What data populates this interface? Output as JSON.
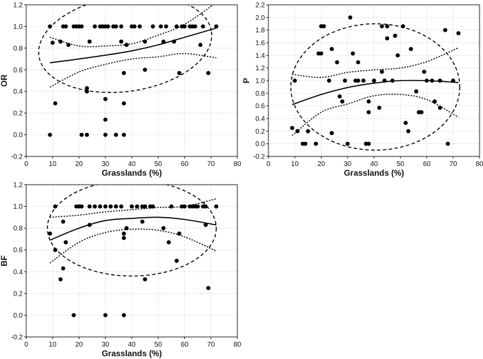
{
  "chart_data": [
    {
      "type": "scatter",
      "id": "OR",
      "xlabel": "Grasslands (%)",
      "ylabel": "OR",
      "xlim": [
        0,
        80
      ],
      "ylim": [
        -0.2,
        1.2
      ],
      "xticks": [
        0,
        10,
        20,
        30,
        40,
        50,
        60,
        70,
        80
      ],
      "yticks": [
        -0.2,
        0.0,
        0.2,
        0.4,
        0.6,
        0.8,
        1.0,
        1.2
      ],
      "grid": true,
      "points": [
        [
          9,
          1.0
        ],
        [
          10,
          0.85
        ],
        [
          11,
          0.29
        ],
        [
          13,
          0.86
        ],
        [
          14,
          1.0
        ],
        [
          15,
          1.0
        ],
        [
          16,
          0.83
        ],
        [
          18,
          1.0
        ],
        [
          19,
          1.0
        ],
        [
          20,
          1.0
        ],
        [
          21,
          1.0
        ],
        [
          23,
          0.43
        ],
        [
          23,
          0.4
        ],
        [
          24,
          0.86
        ],
        [
          26,
          1.0
        ],
        [
          28,
          1.0
        ],
        [
          29,
          1.0
        ],
        [
          30,
          1.0
        ],
        [
          31,
          1.0
        ],
        [
          33,
          1.0
        ],
        [
          34,
          1.0
        ],
        [
          36,
          1.0
        ],
        [
          36,
          0.86
        ],
        [
          37,
          0.57
        ],
        [
          38,
          0.83
        ],
        [
          40,
          1.0
        ],
        [
          41,
          1.0
        ],
        [
          43,
          1.0
        ],
        [
          45,
          0.6
        ],
        [
          45,
          0.86
        ],
        [
          48,
          1.0
        ],
        [
          51,
          1.0
        ],
        [
          52,
          0.86
        ],
        [
          53,
          1.0
        ],
        [
          56,
          0.86
        ],
        [
          57,
          1.0
        ],
        [
          58,
          0.57
        ],
        [
          59,
          1.0
        ],
        [
          60,
          1.0
        ],
        [
          62,
          1.0
        ],
        [
          63,
          1.0
        ],
        [
          64,
          1.0
        ],
        [
          66,
          0.83
        ],
        [
          67,
          1.0
        ],
        [
          69,
          0.57
        ],
        [
          72,
          1.0
        ],
        [
          9,
          0.0
        ],
        [
          21,
          0.0
        ],
        [
          23,
          0.0
        ],
        [
          30,
          0.33
        ],
        [
          30,
          0.14
        ],
        [
          30,
          0.0
        ],
        [
          34,
          0.0
        ],
        [
          37,
          0.0
        ],
        [
          37,
          0.29
        ]
      ],
      "fit": [
        [
          9,
          0.665
        ],
        [
          20,
          0.7
        ],
        [
          30,
          0.735
        ],
        [
          40,
          0.775
        ],
        [
          50,
          0.83
        ],
        [
          60,
          0.9
        ],
        [
          72,
          0.985
        ]
      ],
      "ci_upper": [
        [
          9,
          0.9
        ],
        [
          20,
          0.82
        ],
        [
          30,
          0.82
        ],
        [
          40,
          0.84
        ],
        [
          50,
          0.92
        ],
        [
          60,
          1.02
        ],
        [
          72,
          1.22
        ]
      ],
      "ci_lower": [
        [
          9,
          0.44
        ],
        [
          20,
          0.58
        ],
        [
          30,
          0.65
        ],
        [
          40,
          0.7
        ],
        [
          50,
          0.72
        ],
        [
          60,
          0.75
        ],
        [
          72,
          0.71
        ]
      ],
      "ellipse": {
        "cx": 37.5,
        "cy": 0.84,
        "rx": 33,
        "ry": 0.44,
        "angle": -8
      }
    },
    {
      "type": "scatter",
      "id": "P",
      "xlabel": "Grasslands (%)",
      "ylabel": "P",
      "xlim": [
        0,
        80
      ],
      "ylim": [
        -0.2,
        2.2
      ],
      "xticks": [
        0,
        10,
        20,
        30,
        40,
        50,
        60,
        70,
        80
      ],
      "yticks": [
        -0.2,
        0.0,
        0.2,
        0.4,
        0.6,
        0.8,
        1.0,
        1.2,
        1.4,
        1.6,
        1.8,
        2.0,
        2.2
      ],
      "grid": true,
      "points": [
        [
          9,
          0.25
        ],
        [
          10,
          1.0
        ],
        [
          11,
          0.2
        ],
        [
          13,
          0.0
        ],
        [
          14,
          0.0
        ],
        [
          15,
          0.2
        ],
        [
          18,
          0.0
        ],
        [
          19,
          1.43
        ],
        [
          20,
          1.86
        ],
        [
          21,
          1.86
        ],
        [
          20,
          1.43
        ],
        [
          23,
          1.0
        ],
        [
          24,
          1.5
        ],
        [
          24,
          0.17
        ],
        [
          26,
          1.29
        ],
        [
          27,
          0.75
        ],
        [
          28,
          0.67
        ],
        [
          29,
          1.0
        ],
        [
          30,
          0.0
        ],
        [
          31,
          2.0
        ],
        [
          32,
          1.43
        ],
        [
          33,
          1.0
        ],
        [
          34,
          1.29
        ],
        [
          34,
          1.0
        ],
        [
          36,
          1.0
        ],
        [
          37,
          0.0
        ],
        [
          38,
          0.67
        ],
        [
          38,
          0.5
        ],
        [
          40,
          1.0
        ],
        [
          42,
          0.57
        ],
        [
          43,
          1.86
        ],
        [
          43,
          1.14
        ],
        [
          44,
          1.0
        ],
        [
          45,
          1.86
        ],
        [
          45,
          1.67
        ],
        [
          47,
          1.0
        ],
        [
          48,
          1.71
        ],
        [
          49,
          1.4
        ],
        [
          51,
          1.86
        ],
        [
          52,
          0.33
        ],
        [
          53,
          0.2
        ],
        [
          54,
          1.5
        ],
        [
          56,
          0.83
        ],
        [
          57,
          0.5
        ],
        [
          58,
          0.5
        ],
        [
          59,
          1.14
        ],
        [
          60,
          1.0
        ],
        [
          62,
          1.0
        ],
        [
          63,
          0.67
        ],
        [
          65,
          1.0
        ],
        [
          65,
          0.57
        ],
        [
          67,
          1.8
        ],
        [
          68,
          0.0
        ],
        [
          70,
          1.0
        ],
        [
          72,
          1.75
        ],
        [
          37,
          0.0
        ],
        [
          38,
          0.0
        ]
      ],
      "fit": [
        [
          9,
          0.62
        ],
        [
          20,
          0.78
        ],
        [
          30,
          0.89
        ],
        [
          40,
          0.96
        ],
        [
          50,
          1.0
        ],
        [
          60,
          1.0
        ],
        [
          72,
          0.97
        ]
      ],
      "ci_upper": [
        [
          9,
          1.1
        ],
        [
          20,
          1.05
        ],
        [
          30,
          1.13
        ],
        [
          40,
          1.17
        ],
        [
          50,
          1.2
        ],
        [
          60,
          1.3
        ],
        [
          72,
          1.52
        ]
      ],
      "ci_lower": [
        [
          9,
          0.13
        ],
        [
          20,
          0.5
        ],
        [
          30,
          0.63
        ],
        [
          40,
          0.76
        ],
        [
          50,
          0.78
        ],
        [
          60,
          0.7
        ],
        [
          72,
          0.42
        ]
      ],
      "ellipse": {
        "cx": 40.5,
        "cy": 0.9,
        "rx": 32,
        "ry": 1.0,
        "angle": 0
      }
    },
    {
      "type": "scatter",
      "id": "BF",
      "xlabel": "Grasslands (%)",
      "ylabel": "BF",
      "xlim": [
        0,
        80
      ],
      "ylim": [
        -0.2,
        1.2
      ],
      "xticks": [
        0,
        10,
        20,
        30,
        40,
        50,
        60,
        70,
        80
      ],
      "yticks": [
        -0.2,
        0.0,
        0.2,
        0.4,
        0.6,
        0.8,
        1.0,
        1.2
      ],
      "grid": true,
      "points": [
        [
          9,
          0.75
        ],
        [
          11,
          1.0
        ],
        [
          11,
          0.6
        ],
        [
          13,
          0.33
        ],
        [
          14,
          0.86
        ],
        [
          14,
          0.43
        ],
        [
          15,
          0.67
        ],
        [
          18,
          0.0
        ],
        [
          19,
          1.0
        ],
        [
          20,
          1.0
        ],
        [
          21,
          1.0
        ],
        [
          24,
          1.0
        ],
        [
          24,
          0.83
        ],
        [
          26,
          1.0
        ],
        [
          28,
          1.0
        ],
        [
          30,
          1.0
        ],
        [
          30,
          0.0
        ],
        [
          32,
          1.0
        ],
        [
          34,
          1.0
        ],
        [
          36,
          1.0
        ],
        [
          37,
          0.75
        ],
        [
          37,
          0.71
        ],
        [
          38,
          0.8
        ],
        [
          37,
          0.0
        ],
        [
          40,
          1.0
        ],
        [
          42,
          1.0
        ],
        [
          44,
          1.0
        ],
        [
          44,
          0.86
        ],
        [
          45,
          1.0
        ],
        [
          45,
          0.33
        ],
        [
          47,
          1.0
        ],
        [
          48,
          1.0
        ],
        [
          52,
          0.8
        ],
        [
          54,
          0.67
        ],
        [
          55,
          1.0
        ],
        [
          57,
          0.5
        ],
        [
          58,
          0.75
        ],
        [
          59,
          1.0
        ],
        [
          60,
          1.0
        ],
        [
          62,
          1.0
        ],
        [
          63,
          1.0
        ],
        [
          64,
          1.0
        ],
        [
          65,
          1.0
        ],
        [
          67,
          1.0
        ],
        [
          68,
          0.83
        ],
        [
          68,
          1.0
        ],
        [
          69,
          0.25
        ],
        [
          72,
          1.0
        ]
      ],
      "fit": [
        [
          9,
          0.69
        ],
        [
          20,
          0.8
        ],
        [
          30,
          0.87
        ],
        [
          40,
          0.89
        ],
        [
          50,
          0.9
        ],
        [
          60,
          0.88
        ],
        [
          72,
          0.83
        ]
      ],
      "ci_upper": [
        [
          9,
          0.9
        ],
        [
          20,
          0.92
        ],
        [
          30,
          0.95
        ],
        [
          40,
          0.97
        ],
        [
          50,
          0.99
        ],
        [
          60,
          1.0
        ],
        [
          72,
          1.07
        ]
      ],
      "ci_lower": [
        [
          9,
          0.48
        ],
        [
          20,
          0.67
        ],
        [
          30,
          0.76
        ],
        [
          40,
          0.79
        ],
        [
          50,
          0.78
        ],
        [
          60,
          0.72
        ],
        [
          72,
          0.59
        ]
      ],
      "ellipse": {
        "cx": 40,
        "cy": 0.8,
        "rx": 32,
        "ry": 0.44,
        "angle": 0
      }
    }
  ]
}
